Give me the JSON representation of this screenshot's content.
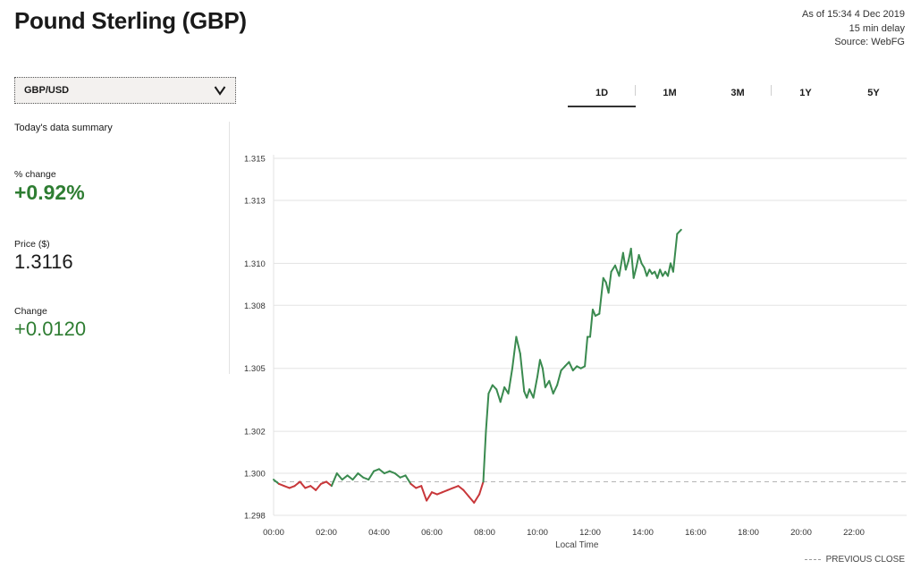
{
  "header": {
    "title": "Pound Sterling (GBP)",
    "as_of": "As of 15:34 4 Dec 2019",
    "delay": "15 min delay",
    "source": "Source: WebFG"
  },
  "selector": {
    "value": "GBP/USD"
  },
  "tabs": [
    {
      "label": "1D",
      "active": true
    },
    {
      "label": "1M",
      "active": false
    },
    {
      "label": "3M",
      "active": false
    },
    {
      "label": "1Y",
      "active": false
    },
    {
      "label": "5Y",
      "active": false
    }
  ],
  "summary": {
    "title": "Today's data summary",
    "pct_change_label": "% change",
    "pct_change_value": "+0.92%",
    "price_label": "Price ($)",
    "price_value": "1.3116",
    "change_label": "Change",
    "change_value": "+0.0120"
  },
  "legend": {
    "previous_close": "PREVIOUS CLOSE"
  },
  "colors": {
    "up": "#3a8a4f",
    "down": "#c8373a",
    "accent_green": "#2e7d32",
    "grid": "#e3e3e3"
  },
  "chart_data": {
    "type": "line",
    "title": "",
    "xlabel": "Local Time",
    "ylabel": "",
    "xlim": [
      0,
      24
    ],
    "ylim": [
      1.298,
      1.315
    ],
    "yticks": [
      1.298,
      1.3,
      1.302,
      1.305,
      1.308,
      1.31,
      1.313,
      1.315
    ],
    "ytick_labels": [
      "1.298",
      "1.300",
      "1.302",
      "1.305",
      "1.308",
      "1.310",
      "1.313",
      "1.315"
    ],
    "xticks": [
      0,
      2,
      4,
      6,
      8,
      10,
      12,
      14,
      16,
      18,
      20,
      22
    ],
    "xtick_labels": [
      "00:00",
      "02:00",
      "04:00",
      "06:00",
      "08:00",
      "10:00",
      "12:00",
      "14:00",
      "16:00",
      "18:00",
      "20:00",
      "22:00"
    ],
    "previous_close": 1.2996,
    "grid": true,
    "series": [
      {
        "name": "GBP/USD",
        "x": [
          0.0,
          0.2,
          0.4,
          0.6,
          0.8,
          1.0,
          1.2,
          1.4,
          1.6,
          1.8,
          2.0,
          2.2,
          2.4,
          2.6,
          2.8,
          3.0,
          3.2,
          3.4,
          3.6,
          3.8,
          4.0,
          4.2,
          4.4,
          4.6,
          4.8,
          5.0,
          5.2,
          5.4,
          5.6,
          5.8,
          6.0,
          6.2,
          6.4,
          6.6,
          6.8,
          7.0,
          7.2,
          7.4,
          7.6,
          7.8,
          7.95,
          8.05,
          8.15,
          8.3,
          8.45,
          8.6,
          8.75,
          8.9,
          9.05,
          9.2,
          9.35,
          9.5,
          9.6,
          9.7,
          9.85,
          10.0,
          10.1,
          10.2,
          10.3,
          10.45,
          10.6,
          10.75,
          10.9,
          11.05,
          11.2,
          11.35,
          11.5,
          11.65,
          11.8,
          11.9,
          12.0,
          12.1,
          12.2,
          12.35,
          12.5,
          12.6,
          12.7,
          12.8,
          12.95,
          13.1,
          13.25,
          13.35,
          13.45,
          13.55,
          13.65,
          13.75,
          13.85,
          13.95,
          14.05,
          14.15,
          14.25,
          14.35,
          14.45,
          14.55,
          14.65,
          14.75,
          14.85,
          14.95,
          15.05,
          15.15,
          15.3,
          15.45
        ],
        "values": [
          1.2997,
          1.2995,
          1.2994,
          1.2993,
          1.2994,
          1.2996,
          1.2993,
          1.2994,
          1.2992,
          1.2995,
          1.2996,
          1.2994,
          1.3,
          1.2997,
          1.2999,
          1.2997,
          1.3,
          1.2998,
          1.2997,
          1.3001,
          1.3002,
          1.3,
          1.3001,
          1.3,
          1.2998,
          1.2999,
          1.2995,
          1.2993,
          1.2994,
          1.2987,
          1.2991,
          1.299,
          1.2991,
          1.2992,
          1.2993,
          1.2994,
          1.2992,
          1.2989,
          1.2986,
          1.299,
          1.2996,
          1.302,
          1.3038,
          1.3042,
          1.304,
          1.3034,
          1.3041,
          1.3038,
          1.305,
          1.3065,
          1.3057,
          1.3039,
          1.3036,
          1.304,
          1.3036,
          1.3046,
          1.3054,
          1.305,
          1.3041,
          1.3044,
          1.3038,
          1.3042,
          1.3049,
          1.3051,
          1.3053,
          1.3049,
          1.3051,
          1.305,
          1.3051,
          1.3065,
          1.3065,
          1.3078,
          1.3075,
          1.3076,
          1.3093,
          1.3091,
          1.3086,
          1.3096,
          1.3099,
          1.3094,
          1.3105,
          1.3097,
          1.3101,
          1.3107,
          1.3093,
          1.3098,
          1.3104,
          1.31,
          1.3098,
          1.3094,
          1.3097,
          1.3095,
          1.3096,
          1.3093,
          1.3097,
          1.3094,
          1.3096,
          1.3094,
          1.31,
          1.3096,
          1.3114,
          1.3116
        ]
      }
    ]
  }
}
